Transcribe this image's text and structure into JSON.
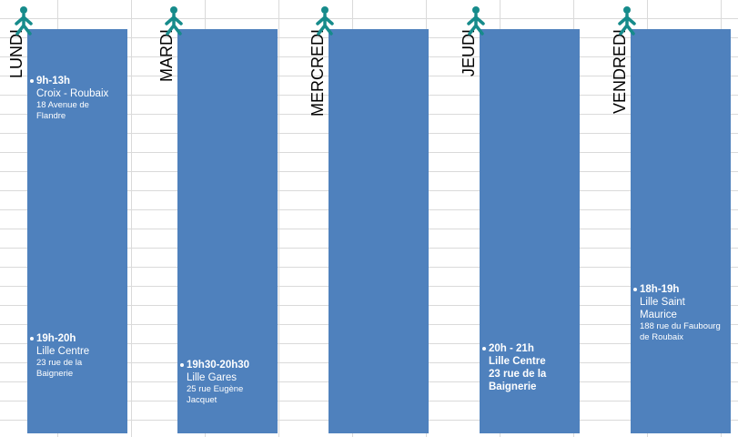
{
  "days": [
    {
      "name": "LUNDI",
      "sessions": [
        {
          "time": "9h-13h",
          "place": "Croix - Roubaix",
          "address": "18 Avenue de Flandre"
        },
        {
          "time": "19h-20h",
          "place": "Lille Centre",
          "address": "23 rue de la Baignerie"
        }
      ]
    },
    {
      "name": "MARDI",
      "sessions": [
        {
          "time": "19h30-20h30",
          "place": "Lille Gares",
          "address": "25 rue Eugène Jacquet"
        }
      ]
    },
    {
      "name": "MERCREDI",
      "sessions": []
    },
    {
      "name": "JEUDI",
      "sessions": [
        {
          "time": "20h - 21h",
          "place": "Lille Centre",
          "address": "23 rue de la Baignerie"
        }
      ]
    },
    {
      "name": "VENDREDI",
      "sessions": [
        {
          "time": "18h-19h",
          "place": "Lille Saint Maurice",
          "address": "188 rue du Faubourg de Roubaix"
        }
      ]
    }
  ]
}
